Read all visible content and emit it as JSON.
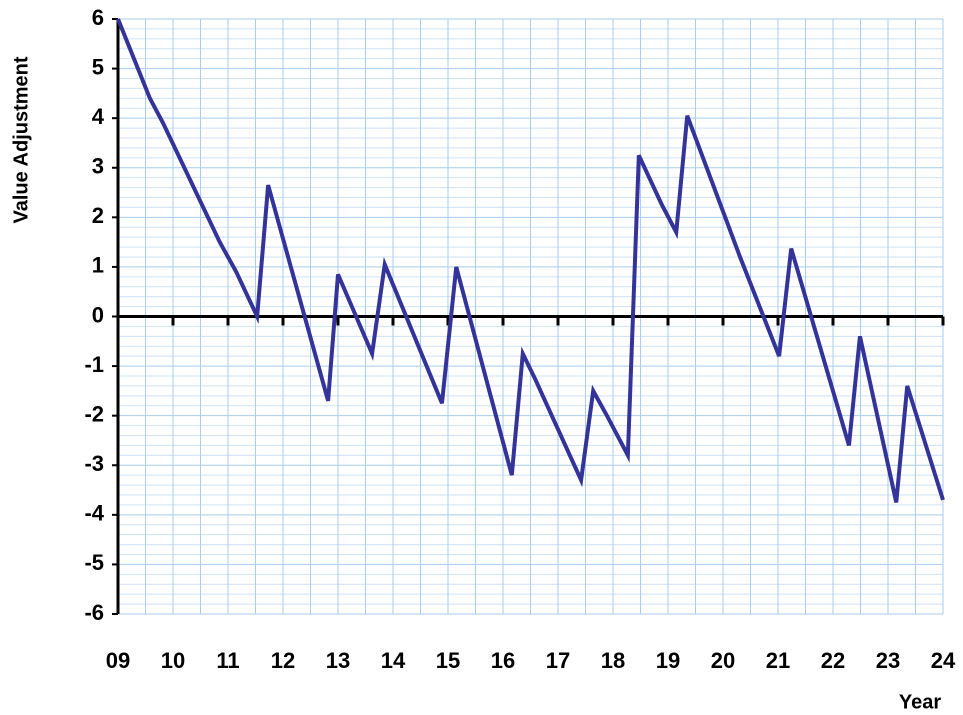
{
  "chart_data": {
    "type": "line",
    "xlabel": "Year",
    "ylabel": "Value Adjustment",
    "x": [
      9.0,
      9.58,
      9.82,
      10.85,
      11.15,
      11.53,
      11.73,
      12.13,
      12.82,
      13.0,
      13.62,
      13.85,
      14.89,
      15.15,
      16.16,
      16.36,
      16.58,
      17.42,
      17.64,
      17.89,
      18.27,
      18.47,
      18.89,
      19.15,
      19.35,
      20.31,
      21.02,
      21.24,
      22.29,
      22.49,
      23.15,
      23.35,
      24.0
    ],
    "series": [
      {
        "name": "Value Adjustment",
        "color": "#333399",
        "values": [
          6.0,
          4.4,
          3.9,
          1.5,
          0.9,
          0.0,
          2.65,
          1.05,
          -1.7,
          0.85,
          -0.75,
          1.05,
          -1.75,
          1.0,
          -3.2,
          -0.75,
          -1.25,
          -3.3,
          -1.5,
          -2.0,
          -2.8,
          3.25,
          2.25,
          1.7,
          4.05,
          1.2,
          -0.8,
          1.37,
          -2.6,
          -0.4,
          -3.75,
          -1.4,
          -3.7
        ]
      }
    ],
    "xlim": [
      9,
      24
    ],
    "xticks": [
      {
        "value": 9,
        "label": "09"
      },
      10,
      11,
      12,
      13,
      14,
      15,
      16,
      17,
      18,
      19,
      20,
      21,
      22,
      23,
      24
    ],
    "ylim": [
      -6,
      6
    ],
    "yticks": [
      -6,
      -5,
      -4,
      -3,
      -2,
      -1,
      0,
      1,
      2,
      3,
      4,
      5,
      6
    ],
    "grid": true
  }
}
